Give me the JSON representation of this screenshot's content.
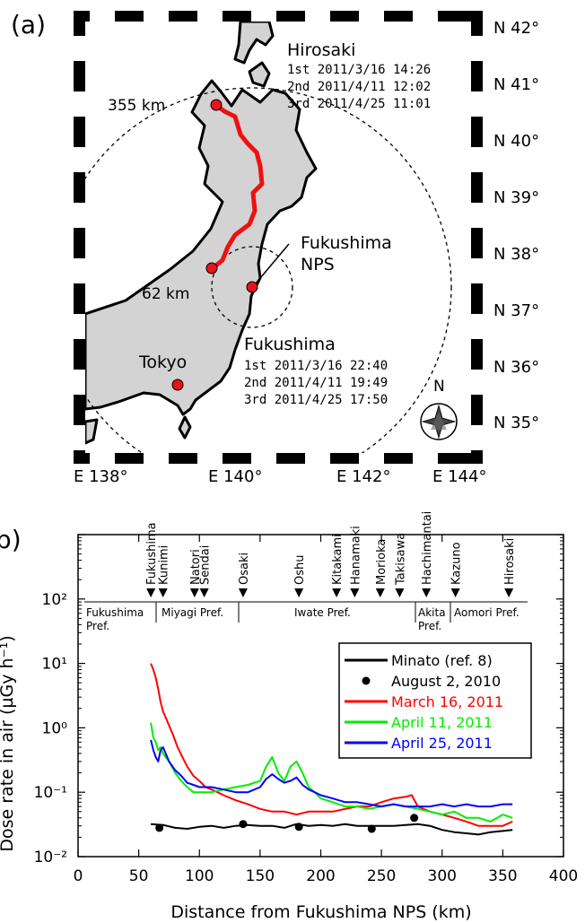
{
  "map_panel": {
    "panel_label": "(a)",
    "lat_labels": [
      "N 42°",
      "N 41°",
      "N 40°",
      "N 39°",
      "N 38°",
      "N 37°",
      "N 36°",
      "N 35°"
    ],
    "lon_labels": [
      "E 138°",
      "E 140°",
      "E 142°",
      "E 144°"
    ],
    "hirosaki": {
      "name": "Hirosaki",
      "times": [
        "1st  2011/3/16 14:26",
        "2nd 2011/4/11 12:02",
        "3rd  2011/4/25 11:01"
      ]
    },
    "fukushima": {
      "name": "Fukushima",
      "times": [
        "1st  2011/3/16 22:40",
        "2nd 2011/4/11 19:49",
        "3rd  2011/4/25 17:50"
      ]
    },
    "nps_label": [
      "Fukushima",
      "NPS"
    ],
    "tokyo_label": "Tokyo",
    "dist_far": "355 km",
    "dist_near": "62 km",
    "compass_label": "N",
    "colors": {
      "route": "#ee1111",
      "land": "#d3d3d3",
      "dot": "#e8141b"
    }
  },
  "chart_panel": {
    "panel_label": "(b)",
    "ylabel": "Dose rate in air (µGy h⁻¹)",
    "xlabel": "Distance from Fukushima NPS (km)",
    "prefectures": [
      "Fukushima",
      "Pref.",
      "Miyagi Pref.",
      "Iwate Pref.",
      "Akita",
      "Pref.",
      "Aomori Pref."
    ],
    "stations": [
      {
        "name": "Fukushima",
        "x": 60
      },
      {
        "name": "Kunimi",
        "x": 70
      },
      {
        "name": "Natori",
        "x": 96
      },
      {
        "name": "Sendai",
        "x": 104
      },
      {
        "name": "Osaki",
        "x": 136
      },
      {
        "name": "Oshu",
        "x": 182
      },
      {
        "name": "Kitakami",
        "x": 213
      },
      {
        "name": "Hanamaki",
        "x": 228
      },
      {
        "name": "Morioka",
        "x": 249
      },
      {
        "name": "Takisawa",
        "x": 265
      },
      {
        "name": "Hachimantai",
        "x": 287
      },
      {
        "name": "Kazuno",
        "x": 311
      },
      {
        "name": "Hirosaki",
        "x": 355
      }
    ]
  },
  "chart_data": {
    "type": "line",
    "xlabel": "Distance from Fukushima NPS (km)",
    "ylabel": "Dose rate in air (µGy h⁻¹)",
    "xlim": [
      0,
      400
    ],
    "ylim": [
      0.01,
      1000
    ],
    "yscale": "log",
    "x_ticks": [
      "0",
      "50",
      "100",
      "150",
      "200",
      "250",
      "300",
      "350",
      "400"
    ],
    "y_ticks": [
      "10⁻²",
      "10⁻¹",
      "10⁰",
      "10¹",
      "10²"
    ],
    "legend_position": "right",
    "series": [
      {
        "name": "Minato (ref. 8)",
        "color": "#000000",
        "style": "line",
        "x": [
          60,
          70,
          80,
          90,
          100,
          110,
          120,
          130,
          140,
          150,
          160,
          170,
          180,
          190,
          200,
          210,
          220,
          230,
          240,
          250,
          260,
          270,
          280,
          290,
          300,
          310,
          320,
          330,
          340,
          350,
          358
        ],
        "y": [
          0.032,
          0.031,
          0.028,
          0.027,
          0.029,
          0.03,
          0.028,
          0.03,
          0.031,
          0.03,
          0.03,
          0.028,
          0.032,
          0.03,
          0.031,
          0.03,
          0.032,
          0.03,
          0.03,
          0.03,
          0.03,
          0.031,
          0.032,
          0.03,
          0.026,
          0.024,
          0.023,
          0.022,
          0.024,
          0.025,
          0.026
        ]
      },
      {
        "name": "August 2, 2010",
        "color": "#000000",
        "style": "points",
        "x": [
          67,
          136,
          182,
          242,
          277
        ],
        "y": [
          0.028,
          0.032,
          0.029,
          0.027,
          0.04
        ]
      },
      {
        "name": "March 16, 2011",
        "color": "#ff0000",
        "style": "line",
        "x": [
          60,
          62,
          64,
          66,
          68,
          70,
          74,
          78,
          82,
          86,
          90,
          95,
          100,
          105,
          110,
          115,
          120,
          130,
          140,
          150,
          160,
          170,
          180,
          190,
          200,
          210,
          220,
          230,
          240,
          250,
          260,
          270,
          275,
          280,
          290,
          300,
          310,
          320,
          330,
          340,
          350,
          358
        ],
        "y": [
          10,
          8,
          6,
          4,
          2.5,
          1.8,
          1.2,
          0.8,
          0.5,
          0.35,
          0.25,
          0.18,
          0.15,
          0.12,
          0.11,
          0.1,
          0.09,
          0.075,
          0.065,
          0.055,
          0.05,
          0.05,
          0.045,
          0.05,
          0.05,
          0.05,
          0.055,
          0.06,
          0.06,
          0.07,
          0.08,
          0.085,
          0.09,
          0.06,
          0.05,
          0.045,
          0.04,
          0.035,
          0.03,
          0.03,
          0.03,
          0.035
        ]
      },
      {
        "name": "April 11, 2011",
        "color": "#00ee00",
        "style": "line",
        "x": [
          60,
          62,
          64,
          66,
          68,
          70,
          75,
          80,
          85,
          90,
          95,
          100,
          110,
          120,
          130,
          140,
          150,
          155,
          160,
          165,
          170,
          175,
          180,
          185,
          190,
          195,
          200,
          210,
          220,
          230,
          240,
          250,
          260,
          270,
          280,
          290,
          300,
          310,
          320,
          330,
          340,
          350,
          358
        ],
        "y": [
          1.2,
          0.7,
          0.6,
          0.45,
          0.5,
          0.4,
          0.3,
          0.2,
          0.15,
          0.12,
          0.1,
          0.1,
          0.1,
          0.11,
          0.12,
          0.13,
          0.15,
          0.25,
          0.35,
          0.2,
          0.15,
          0.25,
          0.3,
          0.2,
          0.12,
          0.1,
          0.08,
          0.07,
          0.06,
          0.06,
          0.055,
          0.06,
          0.065,
          0.06,
          0.055,
          0.05,
          0.045,
          0.05,
          0.04,
          0.04,
          0.035,
          0.045,
          0.04
        ]
      },
      {
        "name": "April 25, 2011",
        "color": "#0000ff",
        "style": "line",
        "x": [
          60,
          62,
          64,
          66,
          68,
          70,
          75,
          80,
          85,
          90,
          95,
          100,
          110,
          120,
          130,
          140,
          150,
          155,
          160,
          165,
          170,
          175,
          180,
          185,
          190,
          195,
          200,
          210,
          220,
          230,
          240,
          250,
          260,
          270,
          280,
          290,
          300,
          310,
          320,
          330,
          340,
          350,
          358
        ],
        "y": [
          0.65,
          0.45,
          0.35,
          0.3,
          0.45,
          0.5,
          0.3,
          0.22,
          0.18,
          0.14,
          0.13,
          0.12,
          0.12,
          0.11,
          0.1,
          0.1,
          0.12,
          0.16,
          0.19,
          0.16,
          0.14,
          0.15,
          0.17,
          0.13,
          0.11,
          0.1,
          0.09,
          0.08,
          0.07,
          0.07,
          0.065,
          0.06,
          0.065,
          0.06,
          0.06,
          0.06,
          0.065,
          0.06,
          0.065,
          0.06,
          0.06,
          0.065,
          0.065
        ]
      }
    ]
  }
}
